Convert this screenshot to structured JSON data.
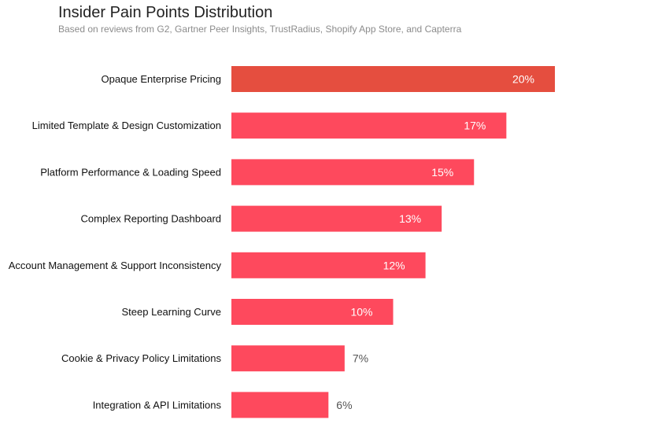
{
  "chart_data": {
    "type": "bar",
    "orientation": "horizontal",
    "title": "Insider Pain Points Distribution",
    "subtitle": "Based on reviews from G2, Gartner Peer Insights, TrustRadius, Shopify App Store, and Capterra",
    "xlabel": "",
    "ylabel": "",
    "xlim": [
      0,
      24
    ],
    "grid": false,
    "legend": "none",
    "value_suffix": "%",
    "categories": [
      "Opaque Enterprise Pricing",
      "Limited Template & Design Customization",
      "Platform Performance & Loading Speed",
      "Complex Reporting Dashboard",
      "Account Management & Support Inconsistency",
      "Steep Learning Curve",
      "Cookie & Privacy Policy Limitations",
      "Integration & API Limitations"
    ],
    "values": [
      20,
      17,
      15,
      13,
      12,
      10,
      7,
      6
    ],
    "colors": {
      "highlight": "#e54e3f",
      "bar": "#fe495d",
      "label_inside": "#ffffff",
      "label_outside": "#555555",
      "category_text": "#111111"
    }
  }
}
